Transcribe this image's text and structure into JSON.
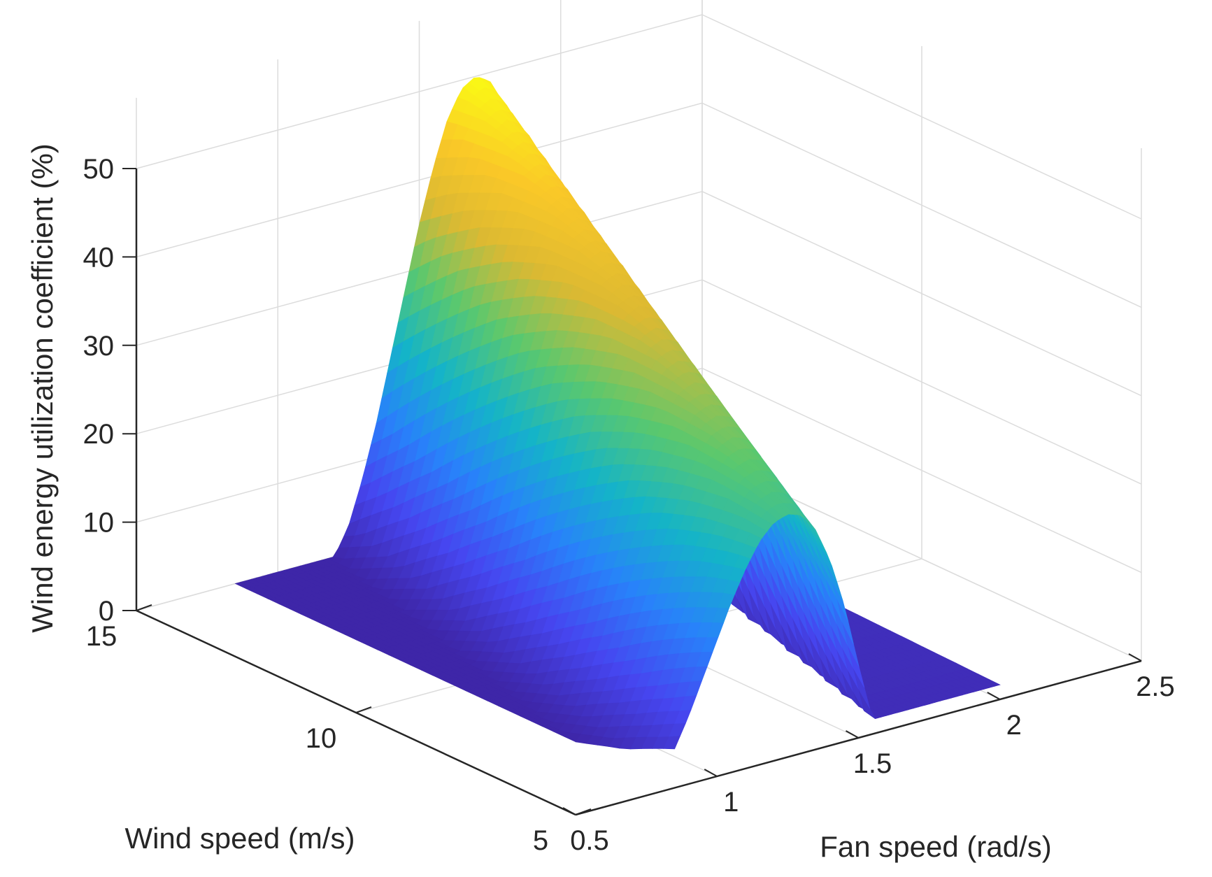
{
  "chart_data": {
    "type": "surface",
    "title": "",
    "xlabel": "Fan speed (rad/s)",
    "ylabel": "Wind speed (m/s)",
    "zlabel": "Wind energy utilization coefficient (%)",
    "x_ticks": [
      0.5,
      1,
      1.5,
      2,
      2.5
    ],
    "y_ticks": [
      5,
      10,
      15
    ],
    "z_ticks": [
      0,
      10,
      20,
      30,
      40,
      50
    ],
    "xlim": [
      0.5,
      2.5
    ],
    "ylim": [
      5,
      15
    ],
    "zlim": [
      0,
      50
    ],
    "grid": true,
    "colormap": "parula",
    "surface": {
      "description_of_shape": "bell-shaped ridge along fan speed, peak near fan speed 1.5 rad/s at wind speed 15 m/s",
      "fan_speed": [
        1.2,
        1.25,
        1.3,
        1.35,
        1.4,
        1.45,
        1.5,
        1.55,
        1.6,
        1.65,
        1.7,
        1.75,
        1.8,
        1.85,
        1.9,
        1.95,
        2.0
      ],
      "wind_speed": [
        5,
        15
      ],
      "z_profile_percent": [
        0,
        3,
        8,
        14,
        21,
        28,
        35,
        41,
        46,
        49,
        50,
        49,
        45,
        38,
        28,
        15,
        3
      ],
      "peak_value": 50
    }
  }
}
